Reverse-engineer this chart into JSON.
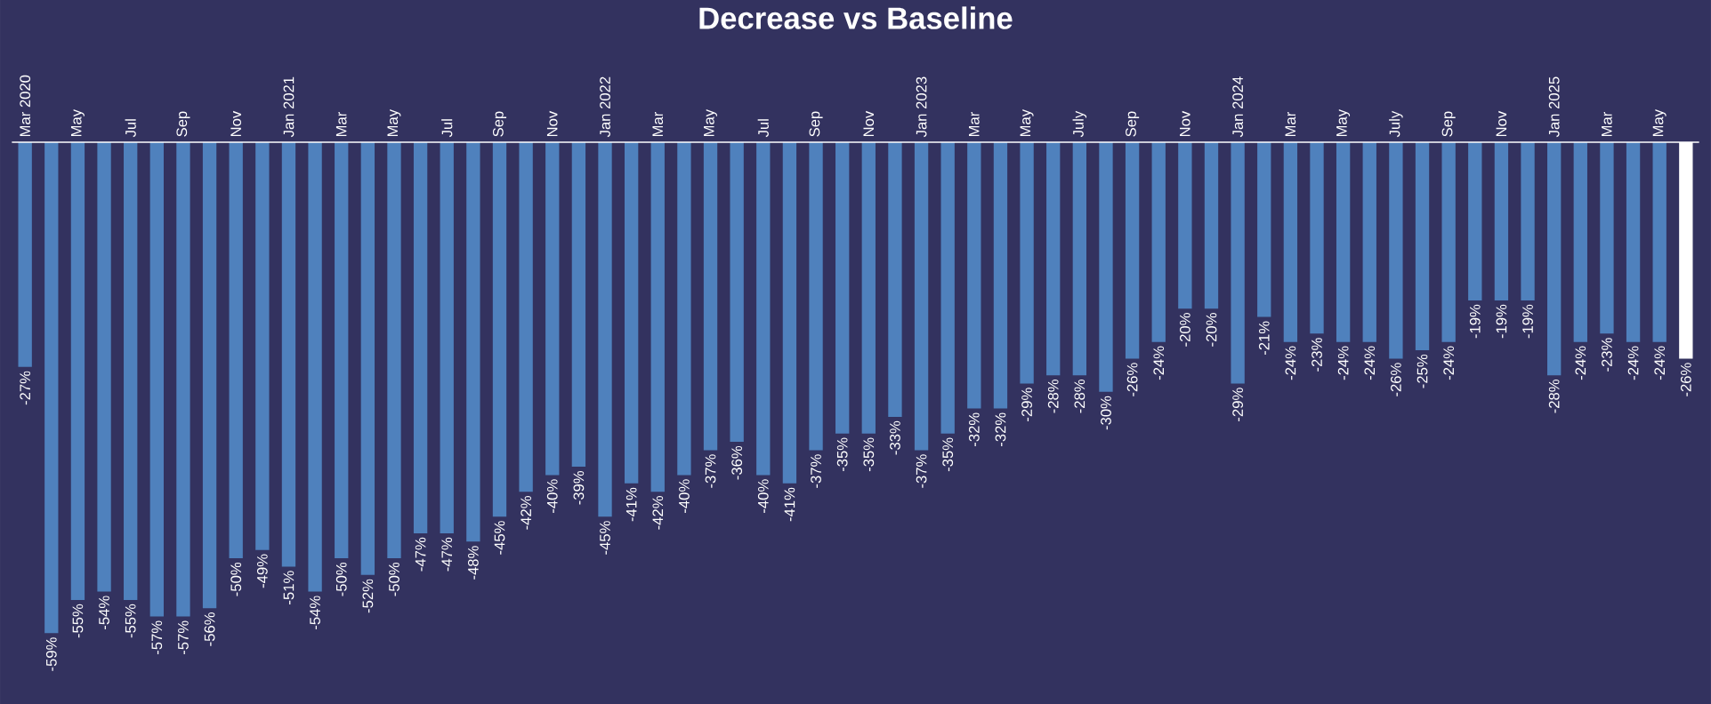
{
  "chart_data": {
    "type": "bar",
    "title": "Decrease vs Baseline",
    "categories": [
      "Mar 2020",
      null,
      "May",
      null,
      "Jul",
      null,
      "Sep",
      null,
      "Nov",
      null,
      "Jan 2021",
      null,
      "Mar",
      null,
      "May",
      null,
      "Jul",
      null,
      "Sep",
      null,
      "Nov",
      null,
      "Jan 2022",
      null,
      "Mar",
      null,
      "May",
      null,
      "Jul",
      null,
      "Sep",
      null,
      "Nov",
      null,
      "Jan 2023",
      null,
      "Mar",
      null,
      "May",
      null,
      "July",
      null,
      "Sep",
      null,
      "Nov",
      null,
      "Jan 2024",
      null,
      "Mar",
      null,
      "May",
      null,
      "July",
      null,
      "Sep",
      null,
      "Nov",
      null,
      "Jan 2025",
      null,
      "Mar",
      null,
      "May",
      null
    ],
    "values": [
      -27,
      -59,
      -55,
      -54,
      -55,
      -57,
      -57,
      -56,
      -50,
      -49,
      -51,
      -54,
      -50,
      -52,
      -50,
      -47,
      -47,
      -48,
      -45,
      -42,
      -40,
      -39,
      -45,
      -41,
      -42,
      -40,
      -37,
      -36,
      -40,
      -41,
      -37,
      -35,
      -35,
      -33,
      -37,
      -35,
      -32,
      -32,
      -29,
      -28,
      -28,
      -30,
      -26,
      -24,
      -20,
      -20,
      -29,
      -21,
      -24,
      -23,
      -24,
      -24,
      -26,
      -25,
      -24,
      -19,
      -19,
      -19,
      -28,
      -24,
      -23,
      -24,
      -24,
      -26
    ],
    "value_labels": [
      "-27%",
      "-59%",
      "-55%",
      "-54%",
      "-55%",
      "-57%",
      "-57%",
      "-56%",
      "-50%",
      "-49%",
      "-51%",
      "-54%",
      "-50%",
      "-52%",
      "-50%",
      "-47%",
      "-47%",
      "-48%",
      "-45%",
      "-42%",
      "-40%",
      "-39%",
      "-45%",
      "-41%",
      "-42%",
      "-40%",
      "-37%",
      "-36%",
      "-40%",
      "-41%",
      "-37%",
      "-35%",
      "-35%",
      "-33%",
      "-37%",
      "-35%",
      "-32%",
      "-32%",
      "-29%",
      "-28%",
      "-28%",
      "-30%",
      "-26%",
      "-24%",
      "-20%",
      "-20%",
      "-29%",
      "-21%",
      "-24%",
      "-23%",
      "-24%",
      "-24%",
      "-26%",
      "-25%",
      "-24%",
      "-19%",
      "-19%",
      "-19%",
      "-28%",
      "-24%",
      "-23%",
      "-24%",
      "-24%",
      "-26%"
    ],
    "colors": [
      "#4f81bd",
      "#4f81bd",
      "#4f81bd",
      "#4f81bd",
      "#4f81bd",
      "#4f81bd",
      "#4f81bd",
      "#4f81bd",
      "#4f81bd",
      "#4f81bd",
      "#4f81bd",
      "#4f81bd",
      "#4f81bd",
      "#4f81bd",
      "#4f81bd",
      "#4f81bd",
      "#4f81bd",
      "#4f81bd",
      "#4f81bd",
      "#4f81bd",
      "#4f81bd",
      "#4f81bd",
      "#4f81bd",
      "#4f81bd",
      "#4f81bd",
      "#4f81bd",
      "#4f81bd",
      "#4f81bd",
      "#4f81bd",
      "#4f81bd",
      "#4f81bd",
      "#4f81bd",
      "#4f81bd",
      "#4f81bd",
      "#4f81bd",
      "#4f81bd",
      "#4f81bd",
      "#4f81bd",
      "#4f81bd",
      "#4f81bd",
      "#4f81bd",
      "#4f81bd",
      "#4f81bd",
      "#4f81bd",
      "#4f81bd",
      "#4f81bd",
      "#4f81bd",
      "#4f81bd",
      "#4f81bd",
      "#4f81bd",
      "#4f81bd",
      "#4f81bd",
      "#4f81bd",
      "#4f81bd",
      "#4f81bd",
      "#4f81bd",
      "#4f81bd",
      "#4f81bd",
      "#4f81bd",
      "#4f81bd",
      "#4f81bd",
      "#4f81bd",
      "#4f81bd",
      "#ffffff"
    ]
  }
}
